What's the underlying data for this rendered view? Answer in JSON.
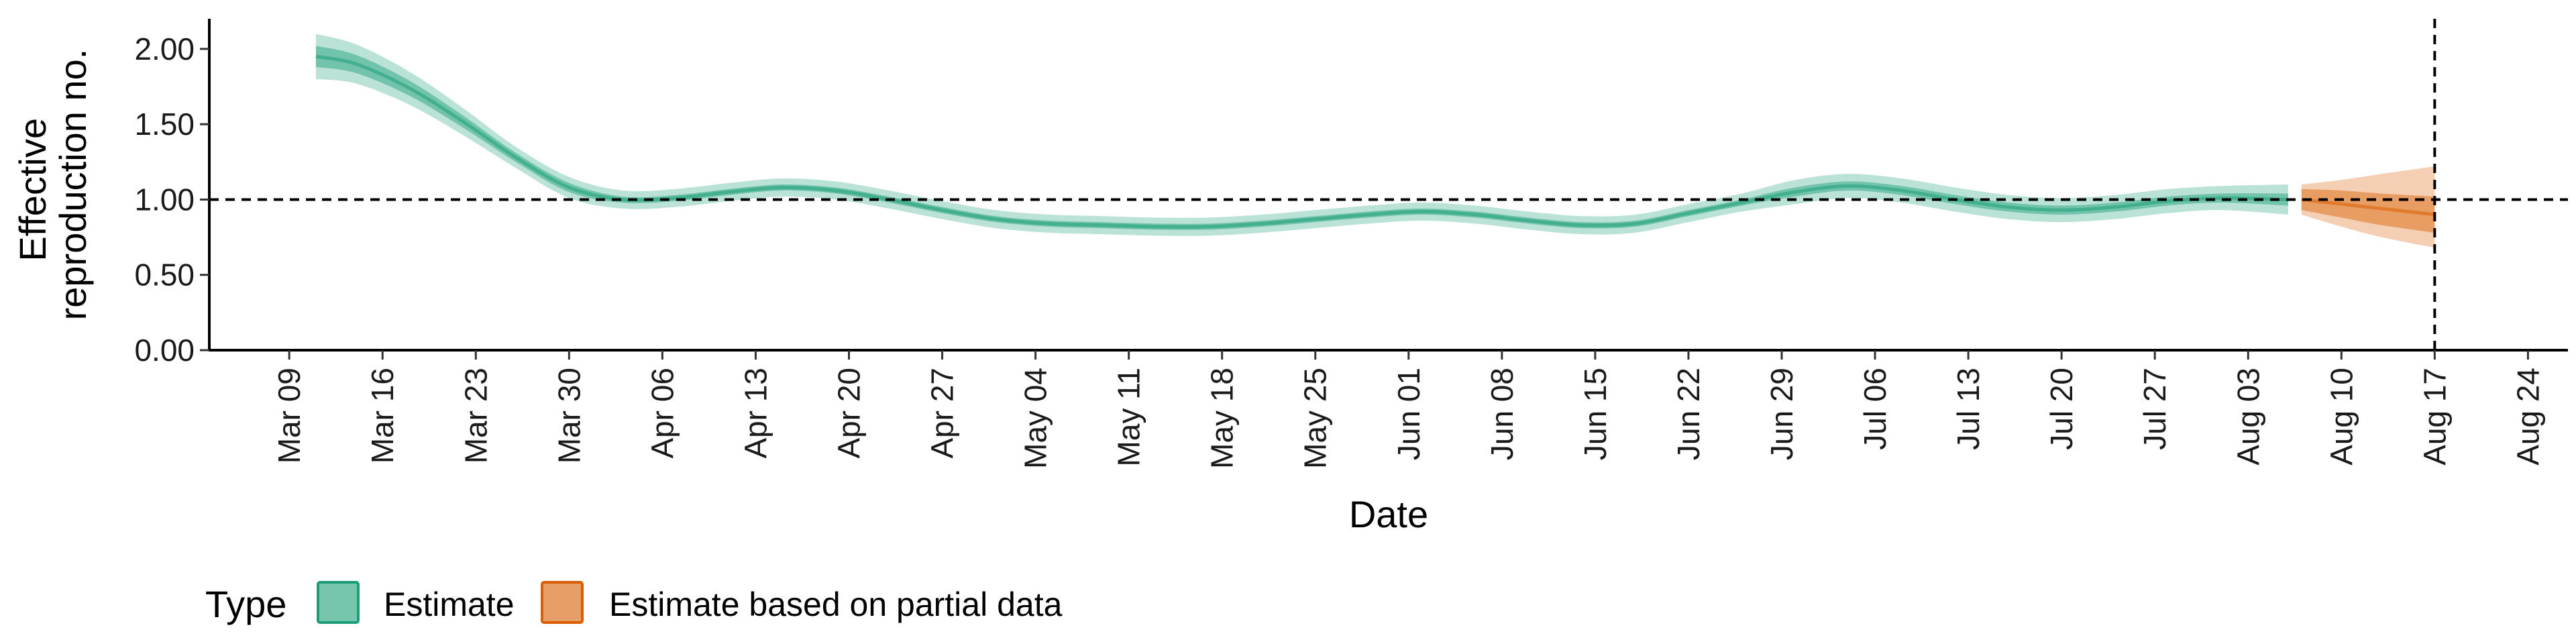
{
  "chart_data": {
    "type": "area",
    "xlabel": "Date",
    "ylabel_lines": [
      "Effective",
      "reproduction no."
    ],
    "ylim": [
      0,
      2.2
    ],
    "yticks": [
      0,
      0.5,
      1.0,
      1.5,
      2.0
    ],
    "ytick_labels": [
      "0.00",
      "0.50",
      "1.00",
      "1.50",
      "2.00"
    ],
    "xlim": [
      "2020-03-03",
      "2020-08-27"
    ],
    "xticks": [
      "2020-03-09",
      "2020-03-16",
      "2020-03-23",
      "2020-03-30",
      "2020-04-06",
      "2020-04-13",
      "2020-04-20",
      "2020-04-27",
      "2020-05-04",
      "2020-05-11",
      "2020-05-18",
      "2020-05-25",
      "2020-06-01",
      "2020-06-08",
      "2020-06-15",
      "2020-06-22",
      "2020-06-29",
      "2020-07-06",
      "2020-07-13",
      "2020-07-20",
      "2020-07-27",
      "2020-08-03",
      "2020-08-10",
      "2020-08-17",
      "2020-08-24"
    ],
    "xtick_labels": [
      "Mar 09",
      "Mar 16",
      "Mar 23",
      "Mar 30",
      "Apr 06",
      "Apr 13",
      "Apr 20",
      "Apr 27",
      "May 04",
      "May 11",
      "May 18",
      "May 25",
      "Jun 01",
      "Jun 08",
      "Jun 15",
      "Jun 22",
      "Jun 29",
      "Jul 06",
      "Jul 13",
      "Jul 20",
      "Jul 27",
      "Aug 03",
      "Aug 10",
      "Aug 17",
      "Aug 24"
    ],
    "reference_line_y": 1.0,
    "vertical_line_x": "2020-08-17",
    "grid": false,
    "legend": {
      "title": "Type",
      "placement": "bottom-left",
      "entries": [
        "Estimate",
        "Estimate based on partial data"
      ]
    },
    "series": [
      {
        "name": "Estimate",
        "color": "#1b9e77",
        "x": [
          "2020-03-11",
          "2020-03-14",
          "2020-03-18",
          "2020-03-22",
          "2020-03-26",
          "2020-03-30",
          "2020-04-03",
          "2020-04-07",
          "2020-04-11",
          "2020-04-15",
          "2020-04-19",
          "2020-04-23",
          "2020-04-27",
          "2020-05-01",
          "2020-05-05",
          "2020-05-09",
          "2020-05-13",
          "2020-05-17",
          "2020-05-21",
          "2020-05-25",
          "2020-05-29",
          "2020-06-02",
          "2020-06-06",
          "2020-06-10",
          "2020-06-14",
          "2020-06-18",
          "2020-06-22",
          "2020-06-26",
          "2020-06-30",
          "2020-07-04",
          "2020-07-08",
          "2020-07-12",
          "2020-07-16",
          "2020-07-20",
          "2020-07-24",
          "2020-07-28",
          "2020-08-01",
          "2020-08-06"
        ],
        "median": [
          1.95,
          1.9,
          1.74,
          1.52,
          1.28,
          1.08,
          1.0,
          1.01,
          1.05,
          1.08,
          1.06,
          1.0,
          0.93,
          0.87,
          0.84,
          0.83,
          0.82,
          0.82,
          0.84,
          0.87,
          0.9,
          0.92,
          0.9,
          0.86,
          0.83,
          0.84,
          0.91,
          0.98,
          1.05,
          1.09,
          1.06,
          1.0,
          0.95,
          0.93,
          0.95,
          0.99,
          1.01,
          1.0
        ],
        "ci_inner_lower": [
          1.88,
          1.84,
          1.69,
          1.48,
          1.25,
          1.05,
          0.98,
          0.99,
          1.03,
          1.06,
          1.04,
          0.98,
          0.91,
          0.85,
          0.82,
          0.81,
          0.8,
          0.8,
          0.82,
          0.85,
          0.88,
          0.9,
          0.88,
          0.84,
          0.81,
          0.82,
          0.89,
          0.96,
          1.02,
          1.06,
          1.03,
          0.97,
          0.92,
          0.9,
          0.92,
          0.96,
          0.98,
          0.96
        ],
        "ci_inner_upper": [
          2.02,
          1.96,
          1.79,
          1.56,
          1.31,
          1.11,
          1.02,
          1.03,
          1.07,
          1.1,
          1.08,
          1.02,
          0.95,
          0.89,
          0.86,
          0.85,
          0.84,
          0.84,
          0.86,
          0.89,
          0.92,
          0.94,
          0.92,
          0.88,
          0.85,
          0.86,
          0.93,
          1.0,
          1.08,
          1.12,
          1.09,
          1.03,
          0.98,
          0.96,
          0.98,
          1.02,
          1.04,
          1.04
        ],
        "ci_outer_lower": [
          1.8,
          1.77,
          1.63,
          1.43,
          1.21,
          1.01,
          0.94,
          0.95,
          0.99,
          1.02,
          1.0,
          0.94,
          0.87,
          0.81,
          0.78,
          0.77,
          0.76,
          0.76,
          0.78,
          0.81,
          0.84,
          0.86,
          0.84,
          0.8,
          0.77,
          0.78,
          0.85,
          0.92,
          0.97,
          1.01,
          0.98,
          0.92,
          0.87,
          0.85,
          0.87,
          0.91,
          0.93,
          0.9
        ],
        "ci_outer_upper": [
          2.1,
          2.03,
          1.85,
          1.61,
          1.35,
          1.15,
          1.06,
          1.07,
          1.11,
          1.14,
          1.12,
          1.06,
          0.99,
          0.93,
          0.9,
          0.89,
          0.88,
          0.88,
          0.9,
          0.93,
          0.96,
          0.98,
          0.96,
          0.92,
          0.89,
          0.9,
          0.97,
          1.04,
          1.13,
          1.17,
          1.14,
          1.08,
          1.03,
          1.01,
          1.03,
          1.07,
          1.09,
          1.1
        ]
      },
      {
        "name": "Estimate based on partial data",
        "color": "#d95f02",
        "x": [
          "2020-08-07",
          "2020-08-10",
          "2020-08-13",
          "2020-08-17"
        ],
        "median": [
          1.0,
          0.97,
          0.94,
          0.9
        ],
        "ci_inner_lower": [
          0.93,
          0.88,
          0.83,
          0.78
        ],
        "ci_inner_upper": [
          1.07,
          1.06,
          1.04,
          1.02
        ],
        "ci_outer_lower": [
          0.9,
          0.82,
          0.75,
          0.68
        ],
        "ci_outer_upper": [
          1.1,
          1.13,
          1.17,
          1.22
        ]
      }
    ]
  }
}
